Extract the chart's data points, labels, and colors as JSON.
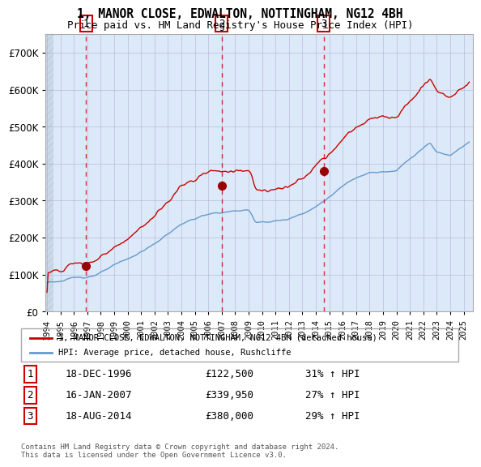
{
  "title1": "1, MANOR CLOSE, EDWALTON, NOTTINGHAM, NG12 4BH",
  "title2": "Price paid vs. HM Land Registry's House Price Index (HPI)",
  "legend_property": "1, MANOR CLOSE, EDWALTON, NOTTINGHAM, NG12 4BH (detached house)",
  "legend_hpi": "HPI: Average price, detached house, Rushcliffe",
  "sale1_date": "18-DEC-1996",
  "sale1_price": 122500,
  "sale1_pct": "31% ↑ HPI",
  "sale2_date": "16-JAN-2007",
  "sale2_price": 339950,
  "sale2_pct": "27% ↑ HPI",
  "sale3_date": "18-AUG-2014",
  "sale3_price": 380000,
  "sale3_pct": "29% ↑ HPI",
  "ylabel_color": "#333333",
  "bg_plot": "#dce9f8",
  "bg_hatch": "#c8d8e8",
  "line_property_color": "#cc0000",
  "line_hpi_color": "#6699cc",
  "dot_color": "#990000",
  "vline_color": "#cc0000",
  "grid_color": "#aaaacc",
  "footer": "Contains HM Land Registry data © Crown copyright and database right 2024.\nThis data is licensed under the Open Government Licence v3.0.",
  "ylim_max": 750000,
  "sale1_year": 1996.96,
  "sale2_year": 2007.04,
  "sale3_year": 2014.63
}
